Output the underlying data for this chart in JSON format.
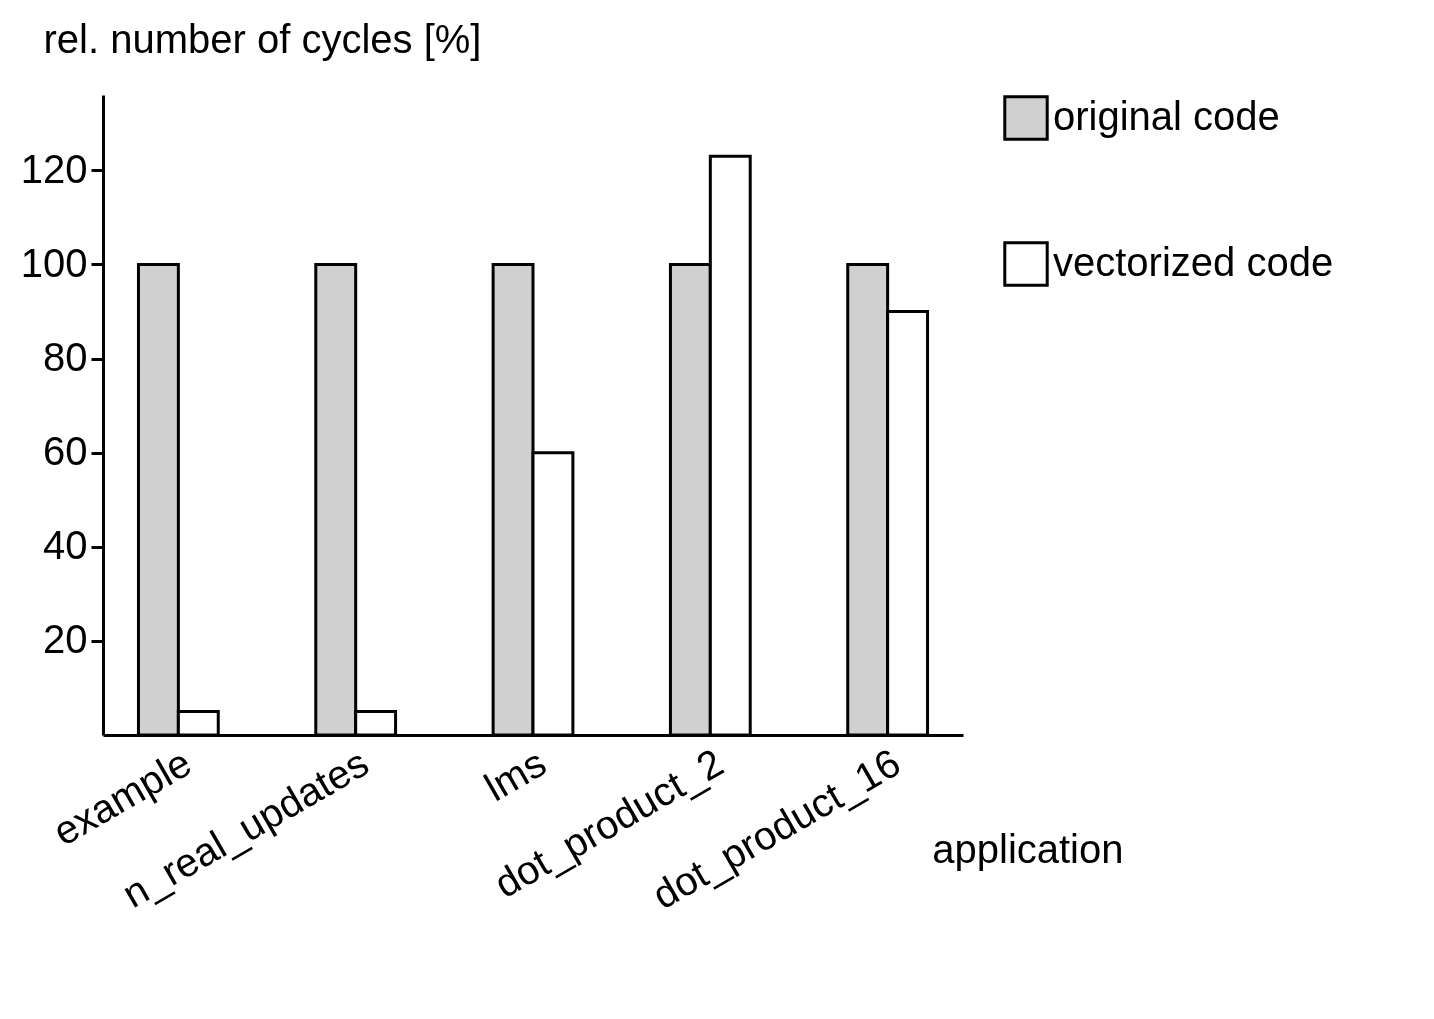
{
  "chart_data": {
    "type": "bar",
    "xlabel": "application",
    "ylabel": "rel. number of cycles [%]",
    "categories": [
      "example",
      "n_real_updates",
      "lms",
      "dot_product_2",
      "dot_product_16"
    ],
    "series": [
      {
        "name": "original code",
        "color": "#d0d0d0",
        "values": [
          100,
          100,
          100,
          100,
          100
        ]
      },
      {
        "name": "vectorized code",
        "color": "#ffffff",
        "values": [
          5,
          5,
          60,
          123,
          90
        ]
      }
    ],
    "ylim": [
      0,
      136
    ],
    "yticks": [
      20,
      40,
      60,
      80,
      100,
      120
    ],
    "grid": false,
    "legend": "right"
  }
}
